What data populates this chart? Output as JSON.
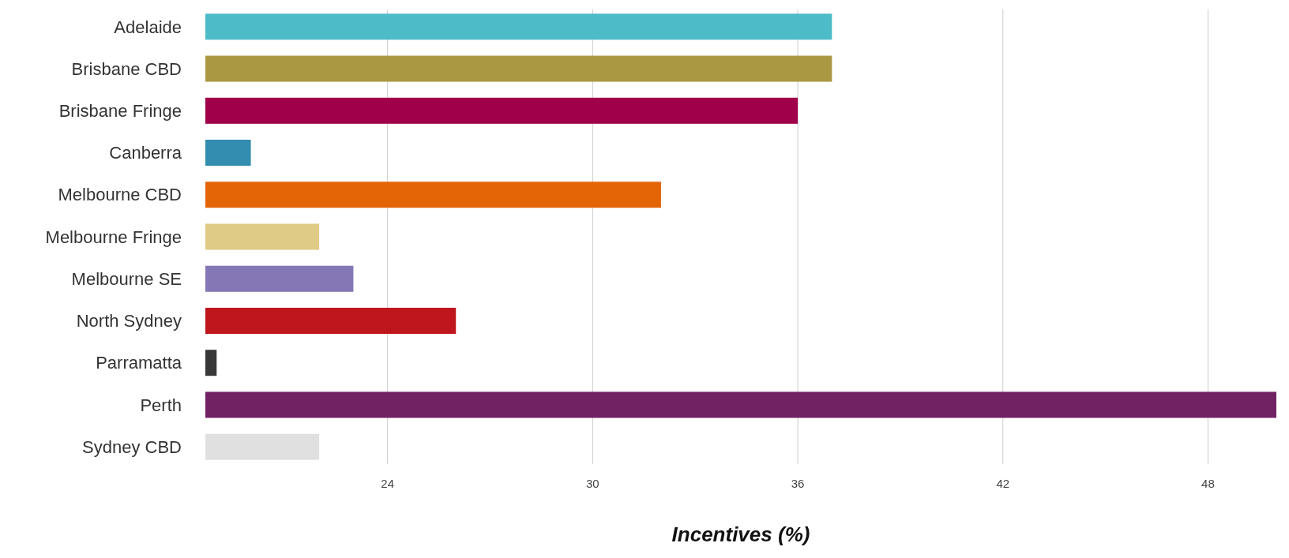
{
  "chart_data": {
    "type": "bar",
    "orientation": "horizontal",
    "xlabel": "Incentives (%)",
    "categories": [
      "Adelaide",
      "Brisbane CBD",
      "Brisbane Fringe",
      "Canberra",
      "Melbourne CBD",
      "Melbourne Fringe",
      "Melbourne SE",
      "North Sydney",
      "Parramatta",
      "Perth",
      "Sydney CBD"
    ],
    "values": [
      37,
      37,
      36,
      20,
      32,
      22,
      23,
      26,
      19,
      50,
      22
    ],
    "colors": [
      "#4dbcc8",
      "#ab9842",
      "#a0004a",
      "#328db0",
      "#e46506",
      "#dfcb85",
      "#8576b6",
      "#be161c",
      "#383838",
      "#702262",
      "#e0e0e0"
    ],
    "xlim": [
      18.67,
      50
    ],
    "xticks": [
      24,
      30,
      36,
      42,
      48
    ],
    "grid": "x"
  }
}
